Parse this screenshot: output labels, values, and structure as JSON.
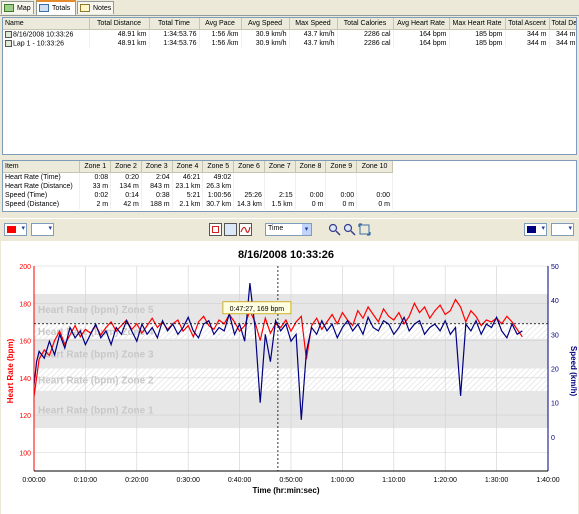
{
  "tabs": [
    {
      "label": "Map",
      "icon": "map-icon"
    },
    {
      "label": "Totals",
      "icon": "table-icon"
    },
    {
      "label": "Notes",
      "icon": "notes-icon"
    }
  ],
  "totals": {
    "columns": [
      "Name",
      "Total Distance",
      "Total Time",
      "Avg Pace",
      "Avg Speed",
      "Max Speed",
      "Total Calories",
      "Avg Heart Rate",
      "Max Heart Rate",
      "Total Ascent",
      "Total Descent"
    ],
    "rows": [
      [
        "8/16/2008 10:33:26",
        "48.91 km",
        "1:34:53.76",
        "1:56 /km",
        "30.9 km/h",
        "43.7 km/h",
        "2286 cal",
        "164 bpm",
        "185 bpm",
        "344 m",
        "344 m"
      ],
      [
        "Lap 1 - 10:33:26",
        "48.91 km",
        "1:34:53.76",
        "1:56 /km",
        "30.9 km/h",
        "43.7 km/h",
        "2286 cal",
        "164 bpm",
        "185 bpm",
        "344 m",
        "344 m"
      ]
    ]
  },
  "zones": {
    "columns": [
      "Item",
      "Zone 1",
      "Zone 2",
      "Zone 3",
      "Zone 4",
      "Zone 5",
      "Zone 6",
      "Zone 7",
      "Zone 8",
      "Zone 9",
      "Zone 10"
    ],
    "rows": [
      [
        "Heart Rate (Time)",
        "0:08",
        "0:20",
        "2:04",
        "46:21",
        "49:02",
        "",
        "",
        "",
        "",
        ""
      ],
      [
        "Heart Rate (Distance)",
        "33 m",
        "134 m",
        "843 m",
        "23.1 km",
        "26.3 km",
        "",
        "",
        "",
        "",
        ""
      ],
      [
        "Speed (Time)",
        "0:02",
        "0:14",
        "0:38",
        "5:21",
        "1:00:56",
        "25:26",
        "2:15",
        "0:00",
        "0:00",
        "0:00"
      ],
      [
        "Speed (Distance)",
        "2 m",
        "42 m",
        "188 m",
        "2.1 km",
        "30.7 km",
        "14.3 km",
        "1.5 km",
        "0 m",
        "0 m",
        "0 m"
      ]
    ]
  },
  "toolbar": {
    "left_color": "#ff0000",
    "right_color": "#000080",
    "x_axis_mode": "Time"
  },
  "chart_data": {
    "type": "line",
    "title": "8/16/2008 10:33:26",
    "xlabel": "Time (hr:min:sec)",
    "ylabel_left": "Heart Rate (bpm)",
    "ylabel_right": "Speed (km/h)",
    "x_ticks": [
      "0:00:00",
      "0:10:00",
      "0:20:00",
      "0:30:00",
      "0:40:00",
      "0:50:00",
      "1:00:00",
      "1:10:00",
      "1:20:00",
      "1:30:00",
      "1:40:00"
    ],
    "x_range_min": [
      0,
      100
    ],
    "y_left_ticks": [
      100,
      120,
      140,
      160,
      180,
      200
    ],
    "y_left_range": [
      90,
      200
    ],
    "y_right_ticks": [
      0,
      10,
      20,
      30,
      40,
      50
    ],
    "y_right_range": [
      -10,
      50
    ],
    "grid": true,
    "zones": [
      {
        "label": "Heart Rate (bpm) Zone 5",
        "from": 169,
        "to": 185
      },
      {
        "label": "Heart Rate (bpm) Zone 4",
        "from": 161,
        "to": 169
      },
      {
        "label": "Heart Rate (bpm) Zone 3",
        "from": 145,
        "to": 161
      },
      {
        "label": "Heart Rate (bpm) Zone 2",
        "from": 133,
        "to": 145
      },
      {
        "label": "Heart Rate (bpm) Zone 1",
        "from": 113,
        "to": 133
      }
    ],
    "cursor": {
      "label": "0:47:27, 169 bpm",
      "x_min": 47.45,
      "y": 169
    },
    "series": [
      {
        "name": "Heart Rate (bpm)",
        "color": "#ff0000",
        "axis": "left",
        "x": [
          0,
          0.5,
          1,
          2,
          3,
          4,
          5,
          6,
          7,
          8,
          9,
          10,
          11,
          12,
          13,
          14,
          15,
          16,
          17,
          18,
          19,
          20,
          21,
          22,
          23,
          24,
          25,
          26,
          27,
          28,
          29,
          30,
          31,
          32,
          33,
          34,
          35,
          36,
          37,
          38,
          39,
          40,
          41,
          42,
          43,
          44,
          45,
          46,
          47,
          48,
          49,
          50,
          51,
          52,
          53,
          54,
          55,
          56,
          57,
          58,
          59,
          60,
          61,
          62,
          63,
          64,
          65,
          66,
          67,
          68,
          69,
          70,
          71,
          72,
          73,
          74,
          75,
          76,
          77,
          78,
          79,
          80,
          81,
          82,
          83,
          84,
          85,
          86,
          87,
          88,
          89,
          90,
          91,
          92,
          93,
          94,
          95
        ],
        "y": [
          130,
          140,
          150,
          155,
          152,
          160,
          165,
          158,
          163,
          168,
          162,
          166,
          164,
          168,
          163,
          167,
          170,
          165,
          168,
          171,
          166,
          169,
          164,
          168,
          172,
          167,
          170,
          166,
          169,
          171,
          165,
          168,
          162,
          170,
          173,
          168,
          166,
          171,
          169,
          174,
          170,
          165,
          168,
          176,
          170,
          160,
          172,
          164,
          169,
          167,
          171,
          165,
          170,
          173,
          150,
          168,
          172,
          166,
          170,
          174,
          169,
          175,
          171,
          168,
          176,
          172,
          178,
          174,
          170,
          177,
          173,
          171,
          175,
          169,
          173,
          180,
          175,
          178,
          172,
          176,
          179,
          174,
          176,
          182,
          178,
          170,
          176,
          173,
          168,
          171,
          170,
          172,
          169,
          173,
          170,
          166,
          162
        ]
      },
      {
        "name": "Speed (km/h)",
        "color": "#000080",
        "axis": "right",
        "x": [
          0,
          0.5,
          1,
          2,
          3,
          4,
          5,
          6,
          7,
          8,
          9,
          10,
          11,
          12,
          13,
          14,
          15,
          16,
          17,
          18,
          19,
          20,
          21,
          22,
          23,
          24,
          25,
          26,
          27,
          28,
          29,
          30,
          31,
          32,
          33,
          34,
          35,
          36,
          37,
          38,
          39,
          40,
          41,
          42,
          43,
          44,
          45,
          46,
          47,
          48,
          49,
          50,
          51,
          52,
          53,
          54,
          55,
          56,
          57,
          58,
          59,
          60,
          61,
          62,
          63,
          64,
          65,
          66,
          67,
          68,
          69,
          70,
          71,
          72,
          73,
          74,
          75,
          76,
          77,
          78,
          79,
          80,
          81,
          82,
          83,
          84,
          85,
          86,
          87,
          88,
          89,
          90,
          91,
          92,
          93,
          94,
          95
        ],
        "y": [
          15,
          22,
          25,
          23,
          28,
          24,
          30,
          26,
          32,
          29,
          31,
          27,
          30,
          33,
          29,
          31,
          27,
          32,
          30,
          34,
          31,
          28,
          33,
          30,
          32,
          29,
          34,
          31,
          33,
          30,
          32,
          35,
          31,
          29,
          33,
          34,
          30,
          32,
          31,
          36,
          30,
          33,
          28,
          45,
          32,
          10,
          30,
          22,
          34,
          31,
          33,
          28,
          30,
          5,
          25,
          32,
          30,
          34,
          31,
          33,
          29,
          32,
          34,
          31,
          33,
          30,
          35,
          32,
          31,
          34,
          33,
          30,
          32,
          35,
          31,
          33,
          34,
          30,
          32,
          33,
          31,
          34,
          30,
          32,
          12,
          33,
          31,
          34,
          30,
          33,
          32,
          35,
          31,
          29,
          33,
          30,
          31
        ]
      }
    ]
  }
}
